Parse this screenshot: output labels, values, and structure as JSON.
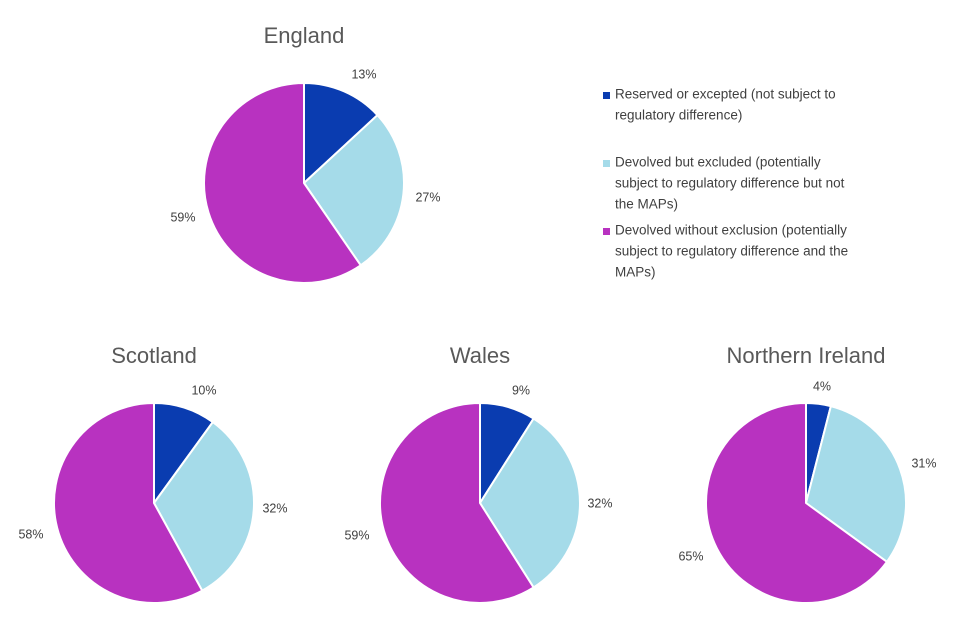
{
  "colors": {
    "reserved": "#0a3cb0",
    "excluded": "#a5dbe9",
    "without_exclusion": "#b832c0",
    "slice_border": "#ffffff"
  },
  "legend": {
    "placement": "right of top chart",
    "items": [
      {
        "key": "reserved",
        "lines": [
          "Reserved or excepted (not subject to",
          "regulatory difference)"
        ]
      },
      {
        "key": "excluded",
        "lines": [
          "Devolved but excluded (potentially",
          "subject to regulatory difference but not",
          "the MAPs)"
        ]
      },
      {
        "key": "without_exclusion",
        "lines": [
          "Devolved without exclusion (potentially",
          "subject to regulatory difference and the",
          "MAPs)"
        ]
      }
    ]
  },
  "chart_data": [
    {
      "type": "pie",
      "title": "England",
      "series": [
        {
          "name": "Reserved or excepted (not subject to regulatory difference)",
          "key": "reserved",
          "value": 13,
          "label": "13%"
        },
        {
          "name": "Devolved but excluded (potentially subject to regulatory difference but not the MAPs)",
          "key": "excluded",
          "value": 27,
          "label": "27%"
        },
        {
          "name": "Devolved without exclusion (potentially subject to regulatory difference and the MAPs)",
          "key": "without_exclusion",
          "value": 59,
          "label": "59%"
        }
      ]
    },
    {
      "type": "pie",
      "title": "Scotland",
      "series": [
        {
          "name": "Reserved or excepted (not subject to regulatory difference)",
          "key": "reserved",
          "value": 10,
          "label": "10%"
        },
        {
          "name": "Devolved but excluded (potentially subject to regulatory difference but not the MAPs)",
          "key": "excluded",
          "value": 32,
          "label": "32%"
        },
        {
          "name": "Devolved without exclusion (potentially subject to regulatory difference and the MAPs)",
          "key": "without_exclusion",
          "value": 58,
          "label": "58%"
        }
      ]
    },
    {
      "type": "pie",
      "title": "Wales",
      "series": [
        {
          "name": "Reserved or excepted (not subject to regulatory difference)",
          "key": "reserved",
          "value": 9,
          "label": "9%"
        },
        {
          "name": "Devolved but excluded (potentially subject to regulatory difference but not the MAPs)",
          "key": "excluded",
          "value": 32,
          "label": "32%"
        },
        {
          "name": "Devolved without exclusion (potentially subject to regulatory difference and the MAPs)",
          "key": "without_exclusion",
          "value": 59,
          "label": "59%"
        }
      ]
    },
    {
      "type": "pie",
      "title": "Northern Ireland",
      "series": [
        {
          "name": "Reserved or excepted (not subject to regulatory difference)",
          "key": "reserved",
          "value": 4,
          "label": "4%"
        },
        {
          "name": "Devolved but excluded (potentially subject to regulatory difference but not the MAPs)",
          "key": "excluded",
          "value": 31,
          "label": "31%"
        },
        {
          "name": "Devolved without exclusion (potentially subject to regulatory difference and the MAPs)",
          "key": "without_exclusion",
          "value": 65,
          "label": "65%"
        }
      ]
    }
  ]
}
